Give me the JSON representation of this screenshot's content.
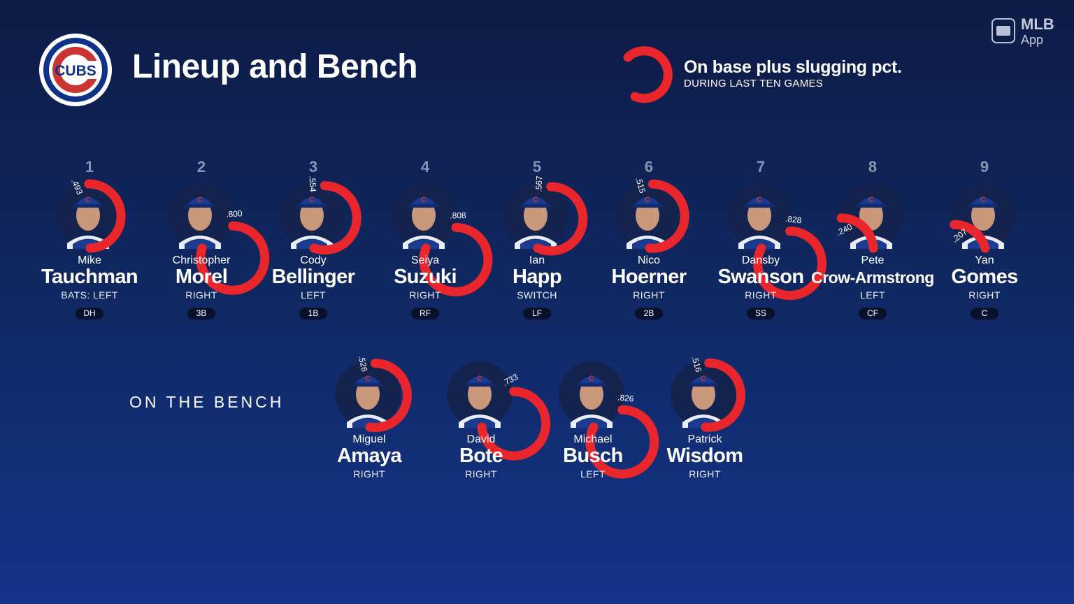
{
  "header": {
    "logo_text": "CUBS",
    "title": "Lineup and Bench",
    "legend_title": "On base plus slugging pct.",
    "legend_subtitle": "DURING LAST TEN GAMES"
  },
  "brand": {
    "logo": "MLB",
    "app": "App"
  },
  "colors": {
    "background_top": "#0d1c47",
    "background_bottom": "#13348a",
    "ring": "#e8262b",
    "cubs_blue": "#0e3386",
    "cubs_red": "#cc3433"
  },
  "lineup": [
    {
      "order": "1",
      "first": "Mike",
      "last": "Tauchman",
      "bats": "BATS: LEFT",
      "position": "DH",
      "ops": ".493",
      "ops_value": 0.493
    },
    {
      "order": "2",
      "first": "Christopher",
      "last": "Morel",
      "bats": "RIGHT",
      "position": "3B",
      "ops": ".800",
      "ops_value": 0.8
    },
    {
      "order": "3",
      "first": "Cody",
      "last": "Bellinger",
      "bats": "LEFT",
      "position": "1B",
      "ops": ".554",
      "ops_value": 0.554
    },
    {
      "order": "4",
      "first": "Seiya",
      "last": "Suzuki",
      "bats": "RIGHT",
      "position": "RF",
      "ops": ".808",
      "ops_value": 0.808
    },
    {
      "order": "5",
      "first": "Ian",
      "last": "Happ",
      "bats": "SWITCH",
      "position": "LF",
      "ops": ".567",
      "ops_value": 0.567
    },
    {
      "order": "6",
      "first": "Nico",
      "last": "Hoerner",
      "bats": "RIGHT",
      "position": "2B",
      "ops": ".515",
      "ops_value": 0.515
    },
    {
      "order": "7",
      "first": "Dansby",
      "last": "Swanson",
      "bats": "RIGHT",
      "position": "SS",
      "ops": ".828",
      "ops_value": 0.828
    },
    {
      "order": "8",
      "first": "Pete",
      "last": "Crow-Armstrong",
      "bats": "LEFT",
      "position": "CF",
      "ops": ".240",
      "ops_value": 0.24
    },
    {
      "order": "9",
      "first": "Yan",
      "last": "Gomes",
      "bats": "RIGHT",
      "position": "C",
      "ops": ".207",
      "ops_value": 0.207
    }
  ],
  "bench_label": "ON THE BENCH",
  "bench": [
    {
      "first": "Miguel",
      "last": "Amaya",
      "bats": "RIGHT",
      "ops": ".526",
      "ops_value": 0.526
    },
    {
      "first": "David",
      "last": "Bote",
      "bats": "RIGHT",
      "ops": ".733",
      "ops_value": 0.733
    },
    {
      "first": "Michael",
      "last": "Busch",
      "bats": "LEFT",
      "ops": ".826",
      "ops_value": 0.826
    },
    {
      "first": "Patrick",
      "last": "Wisdom",
      "bats": "RIGHT",
      "ops": ".516",
      "ops_value": 0.516
    }
  ]
}
